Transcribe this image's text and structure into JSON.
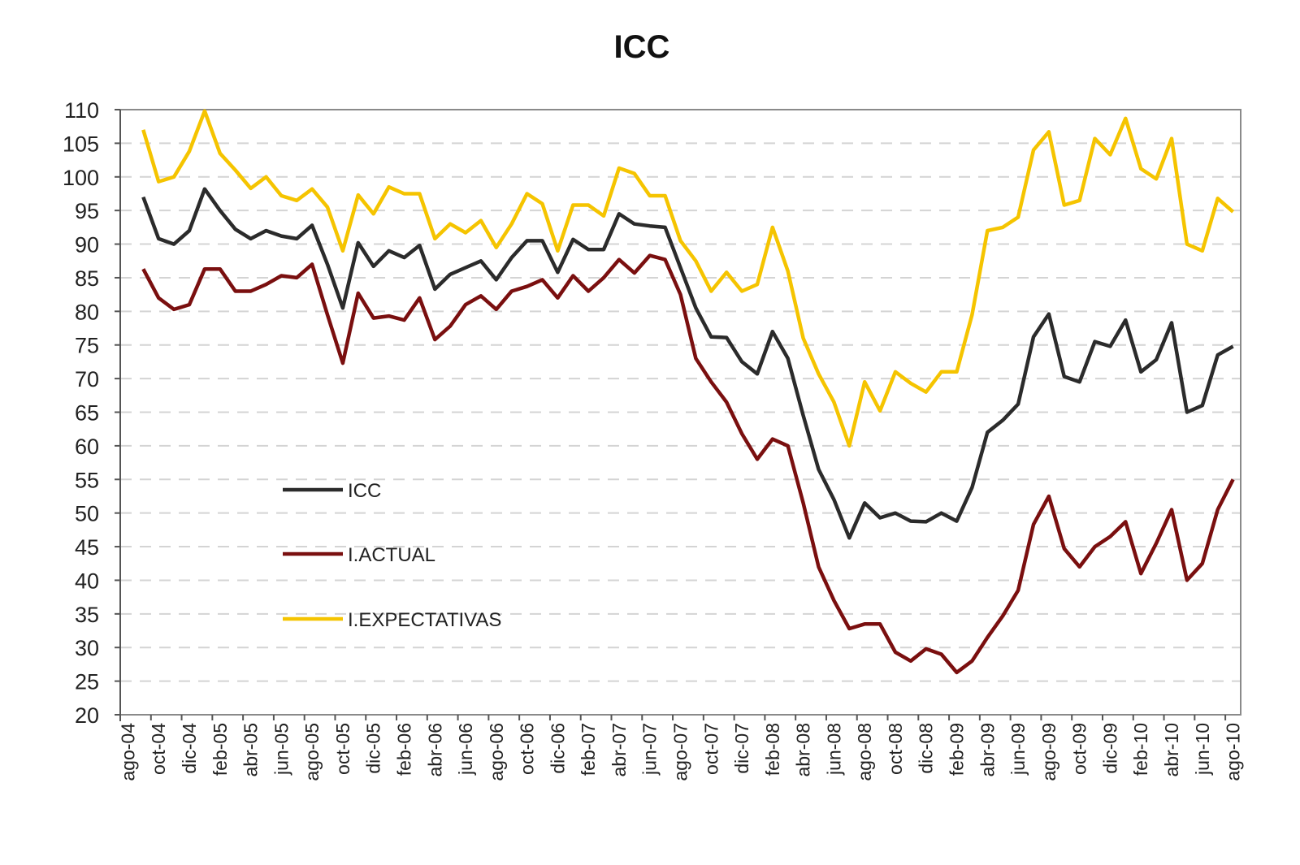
{
  "chart_data": {
    "type": "line",
    "title": "ICC",
    "xlabel": "",
    "ylabel": "",
    "ylim": [
      20,
      110
    ],
    "ytick_step": 5,
    "grid": "horizontal dashed",
    "legend_position": "left-center",
    "x_tick_labels": [
      "ago-04",
      "oct-04",
      "dic-04",
      "feb-05",
      "abr-05",
      "jun-05",
      "ago-05",
      "oct-05",
      "dic-05",
      "feb-06",
      "abr-06",
      "jun-06",
      "ago-06",
      "oct-06",
      "dic-06",
      "feb-07",
      "abr-07",
      "jun-07",
      "ago-07",
      "oct-07",
      "dic-07",
      "feb-08",
      "abr-08",
      "jun-08",
      "ago-08",
      "oct-08",
      "dic-08",
      "feb-09",
      "abr-09",
      "jun-09",
      "ago-09",
      "oct-09",
      "dic-09",
      "feb-10",
      "abr-10",
      "jun-10",
      "ago-10"
    ],
    "x_start": "sep-04",
    "x_end": "ago-10",
    "series": [
      {
        "name": "ICC",
        "color": "#2b2b2b",
        "values": [
          97,
          90.8,
          90,
          92,
          98.2,
          95,
          92.2,
          90.8,
          92,
          91.2,
          90.8,
          92.8,
          87,
          80.5,
          90.2,
          86.7,
          89,
          88,
          89.8,
          83.3,
          85.5,
          86.5,
          87.5,
          84.7,
          88,
          90.5,
          90.5,
          85.8,
          90.7,
          89.2,
          89.2,
          94.5,
          93,
          92.7,
          92.5,
          86.5,
          80.5,
          76.2,
          76.1,
          72.5,
          70.7,
          77,
          73,
          64.5,
          56.5,
          52,
          46.3,
          51.5,
          49.3,
          50,
          48.8,
          48.7,
          50,
          48.8,
          53.8,
          62,
          63.8,
          66.2,
          76.2,
          79.6,
          70.3,
          69.5,
          75.5,
          74.8,
          78.7,
          71,
          72.8,
          78.3,
          65,
          66,
          73.5,
          74.8
        ]
      },
      {
        "name": "I.ACTUAL",
        "color": "#7a0f0f",
        "values": [
          86.3,
          82,
          80.3,
          81,
          86.3,
          86.3,
          83,
          83,
          84,
          85.3,
          85,
          87,
          79.5,
          72.3,
          82.7,
          79,
          79.3,
          78.7,
          82,
          75.8,
          77.8,
          81,
          82.3,
          80.3,
          83,
          83.7,
          84.7,
          82,
          85.3,
          83,
          85,
          87.7,
          85.7,
          88.3,
          87.7,
          82.5,
          73,
          69.5,
          66.5,
          61.8,
          58,
          61,
          60,
          51.5,
          42,
          37,
          32.8,
          33.5,
          33.5,
          29.3,
          28,
          29.8,
          29,
          26.3,
          28,
          31.5,
          34.7,
          38.5,
          48.3,
          52.5,
          44.7,
          42,
          45,
          46.5,
          48.7,
          41,
          45.5,
          50.5,
          40,
          42.5,
          50.5,
          55
        ]
      },
      {
        "name": "I.EXPECTATIVAS",
        "color": "#f5c400",
        "values": [
          107,
          99.3,
          100,
          103.8,
          109.8,
          103.5,
          101,
          98.3,
          100,
          97.2,
          96.5,
          98.2,
          95.5,
          89,
          97.3,
          94.5,
          98.5,
          97.5,
          97.5,
          90.8,
          93,
          91.7,
          93.5,
          89.5,
          93,
          97.5,
          96,
          89,
          95.8,
          95.8,
          94.2,
          101.3,
          100.5,
          97.2,
          97.2,
          90.5,
          87.5,
          83,
          85.8,
          83,
          84,
          92.5,
          86,
          76,
          70.7,
          66.5,
          60,
          69.5,
          65.2,
          71,
          69.3,
          68,
          71,
          71,
          79.5,
          92,
          92.5,
          94,
          104,
          106.7,
          95.8,
          96.5,
          105.7,
          103.3,
          108.7,
          101.2,
          99.7,
          105.7,
          90,
          89,
          96.8,
          94.8
        ]
      }
    ]
  }
}
